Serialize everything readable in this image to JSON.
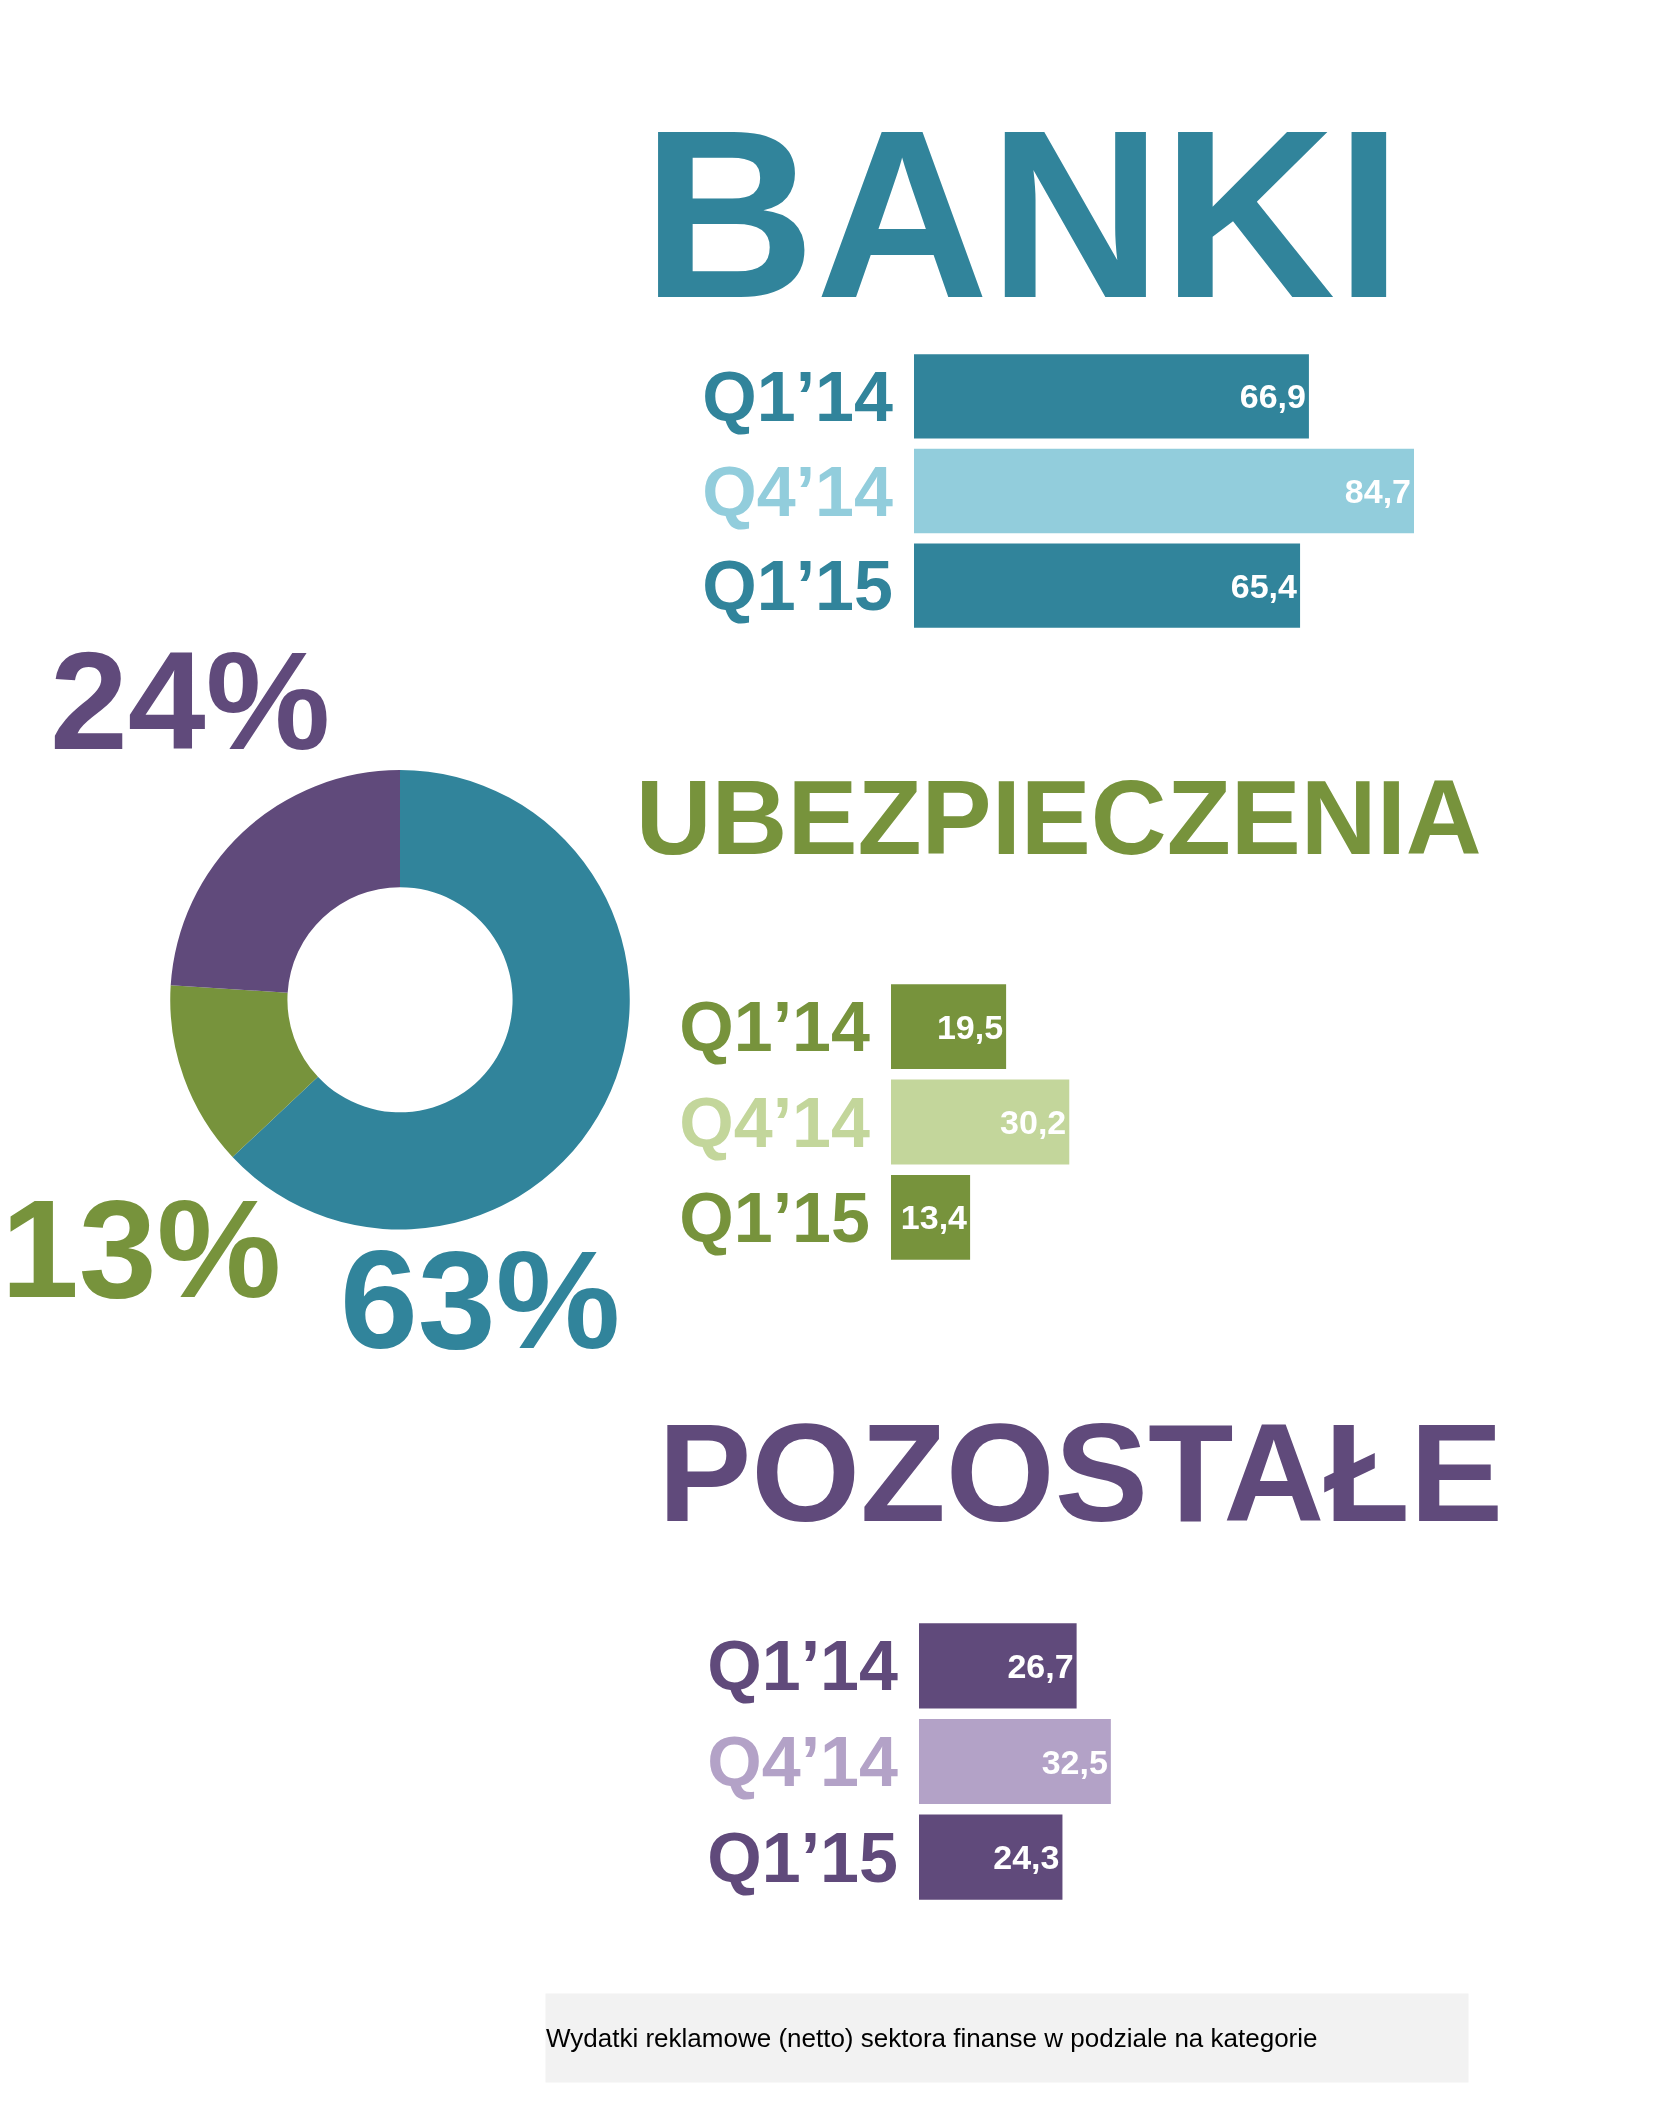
{
  "chart_data": [
    {
      "type": "donut",
      "categories": [
        null,
        null,
        null
      ],
      "values": [
        63,
        13,
        24
      ],
      "colors": [
        "#31849b",
        "#77933c",
        "#604a7b"
      ],
      "value_labels": [
        "63%",
        "13%",
        "24%"
      ]
    },
    {
      "type": "bar",
      "orientation": "horizontal",
      "title": "BANKI",
      "categories": [
        "Q1’14",
        "Q4’14",
        "Q1’15"
      ],
      "values": [
        66.9,
        84.7,
        65.4
      ],
      "colors": [
        "#31849b",
        "#92cddc",
        "#31849b"
      ],
      "value_labels": [
        "66,9",
        "84,7",
        "65,4"
      ]
    },
    {
      "type": "bar",
      "orientation": "horizontal",
      "title": "UBEZPIECZENIA",
      "categories": [
        "Q1’14",
        "Q4’14",
        "Q1’15"
      ],
      "values": [
        19.5,
        30.2,
        13.4
      ],
      "colors": [
        "#77933c",
        "#c3d69b",
        "#77933c"
      ],
      "value_labels": [
        "19,5",
        "30,2",
        "13,4"
      ]
    },
    {
      "type": "bar",
      "orientation": "horizontal",
      "title": "POZOSTAŁE",
      "categories": [
        "Q1’14",
        "Q4’14",
        "Q1’15"
      ],
      "values": [
        26.7,
        32.5,
        24.3
      ],
      "colors": [
        "#604a7b",
        "#b3a2c7",
        "#604a7b"
      ],
      "value_labels": [
        "26,7",
        "32,5",
        "24,3"
      ],
      "annotations": [
        "Wydatki reklamowe (netto) sektora finanse w podziale na kategorie"
      ]
    }
  ]
}
